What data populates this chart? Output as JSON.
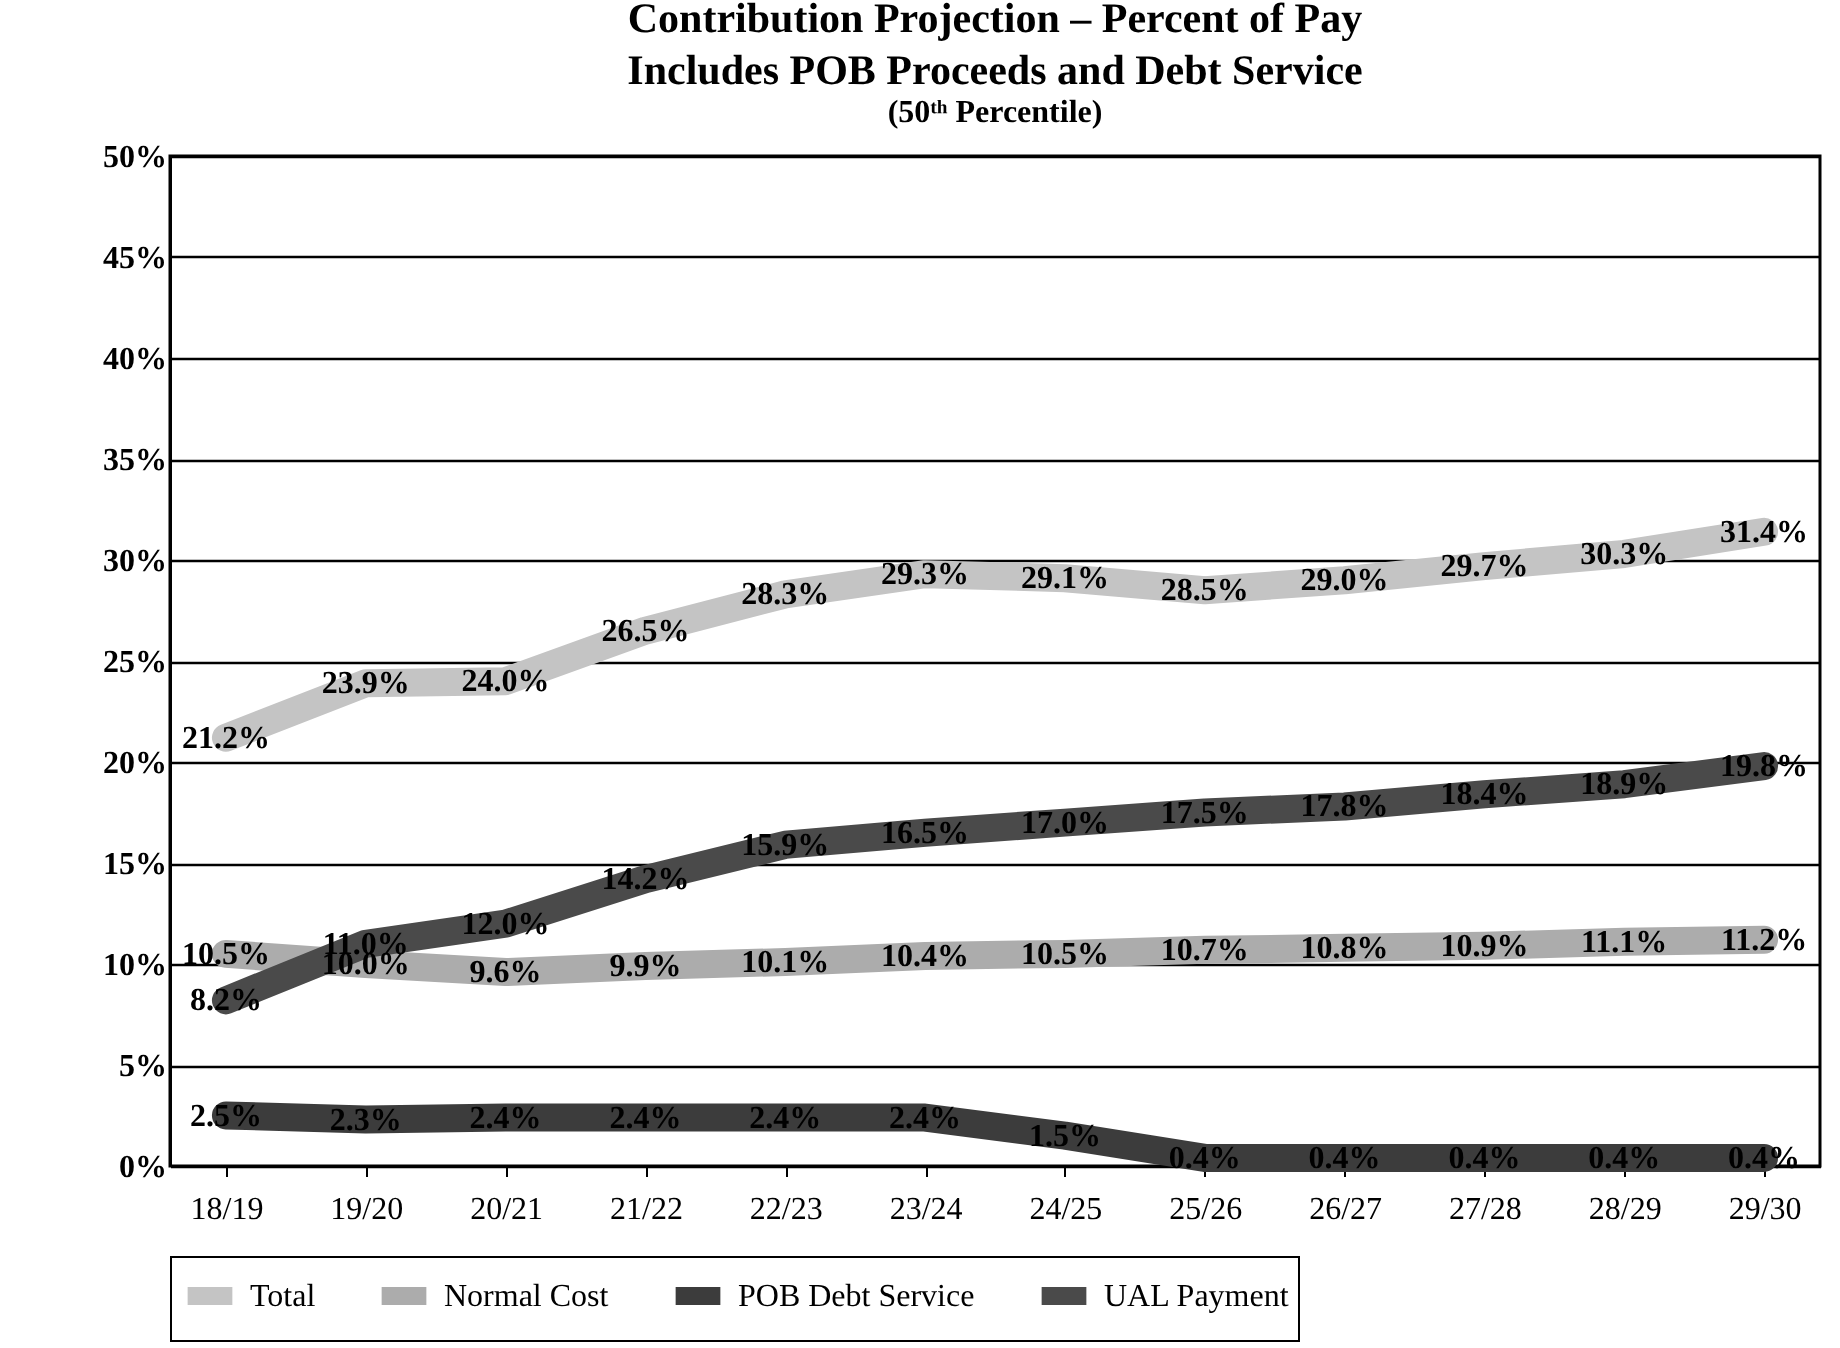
{
  "chart_data": {
    "type": "line",
    "title": [
      "Contribution Projection – Percent of Pay",
      "Includes POB Proceeds and Debt Service"
    ],
    "subtitle": "(50ᵗʰ Percentile)",
    "categories": [
      "18/19",
      "19/20",
      "20/21",
      "21/22",
      "22/23",
      "23/24",
      "24/25",
      "25/26",
      "26/27",
      "27/28",
      "28/29",
      "29/30"
    ],
    "series": [
      {
        "name": "Total",
        "color": "#c4c4c4",
        "values": [
          21.2,
          23.9,
          24.0,
          26.5,
          28.3,
          29.3,
          29.1,
          28.5,
          29.0,
          29.7,
          30.3,
          31.4
        ],
        "value_labels": [
          "21.2%",
          "23.9%",
          "24.0%",
          "26.5%",
          "28.3%",
          "29.3%",
          "29.1%",
          "28.5%",
          "29.0%",
          "29.7%",
          "30.3%",
          "31.4%"
        ]
      },
      {
        "name": "Normal Cost",
        "color": "#acacac",
        "values": [
          10.5,
          10.0,
          9.6,
          9.9,
          10.1,
          10.4,
          10.5,
          10.7,
          10.8,
          10.9,
          11.1,
          11.2
        ],
        "value_labels": [
          "10.5%",
          "10.0%",
          "9.6%",
          "9.9%",
          "10.1%",
          "10.4%",
          "10.5%",
          "10.7%",
          "10.8%",
          "10.9%",
          "11.1%",
          "11.2%"
        ]
      },
      {
        "name": "POB Debt Service",
        "color": "#3c3c3c",
        "values": [
          2.5,
          2.3,
          2.4,
          2.4,
          2.4,
          2.4,
          1.5,
          0.4,
          0.4,
          0.4,
          0.4,
          0.4
        ],
        "value_labels": [
          "2.5%",
          "2.3%",
          "2.4%",
          "2.4%",
          "2.4%",
          "2.4%",
          "1.5%",
          "0.4%",
          "0.4%",
          "0.4%",
          "0.4%",
          "0.4%"
        ]
      },
      {
        "name": "UAL Payment",
        "color": "#4a4a4a",
        "values": [
          8.2,
          11.0,
          12.0,
          14.2,
          15.9,
          16.5,
          17.0,
          17.5,
          17.8,
          18.4,
          18.9,
          19.8
        ],
        "value_labels": [
          "8.2%",
          "11.0%",
          "12.0%",
          "14.2%",
          "15.9%",
          "16.5%",
          "17.0%",
          "17.5%",
          "17.8%",
          "18.4%",
          "18.9%",
          "19.8%"
        ]
      }
    ],
    "ylim": [
      0,
      50
    ],
    "yticks": [
      {
        "value": 0,
        "label": "0%"
      },
      {
        "value": 5,
        "label": "5%"
      },
      {
        "value": 10,
        "label": "10%"
      },
      {
        "value": 15,
        "label": "15%"
      },
      {
        "value": 20,
        "label": "20%"
      },
      {
        "value": 25,
        "label": "25%"
      },
      {
        "value": 30,
        "label": "30%"
      },
      {
        "value": 35,
        "label": "35%"
      },
      {
        "value": 40,
        "label": "40%"
      },
      {
        "value": 45,
        "label": "45%"
      },
      {
        "value": 50,
        "label": "50%"
      }
    ],
    "grid": "y",
    "legend": "bottom"
  }
}
